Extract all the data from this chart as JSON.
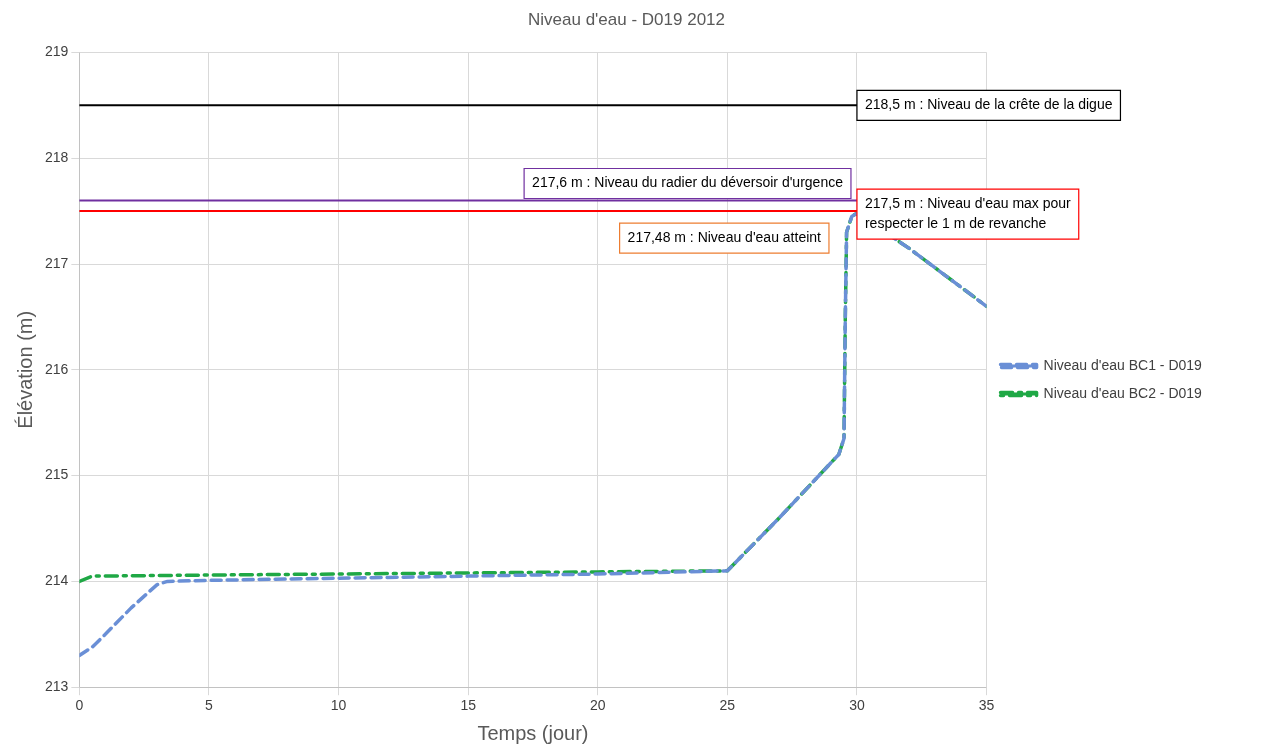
{
  "chart_data": {
    "type": "line",
    "title": "Niveau d'eau - D019 2012",
    "xlabel": "Temps (jour)",
    "ylabel": "Élévation (m)",
    "xlim": [
      0,
      35
    ],
    "xticks": [
      0,
      5,
      10,
      15,
      20,
      25,
      30,
      35
    ],
    "ylim": [
      213,
      219
    ],
    "yticks": [
      213,
      214,
      215,
      216,
      217,
      218,
      219
    ],
    "grid": true,
    "legend": "right",
    "marker": "none",
    "series": [
      {
        "name": "Niveau d'eau BC1 - D019",
        "color": "#6a8fd6",
        "line_style": "dashed",
        "x": [
          0,
          0.5,
          1,
          2,
          3,
          3.4,
          5,
          10,
          15,
          20,
          25,
          27,
          29.3,
          29.5,
          29.55,
          29.6,
          29.8,
          30,
          32,
          35
        ],
        "values": [
          213.3,
          213.38,
          213.5,
          213.75,
          213.97,
          214.0,
          214.01,
          214.03,
          214.05,
          214.07,
          214.1,
          214.6,
          215.2,
          215.35,
          216.5,
          217.3,
          217.45,
          217.48,
          217.15,
          216.6
        ]
      },
      {
        "name": "Niveau d'eau BC2 - D019",
        "color": "#1fa845",
        "line_style": "dashed",
        "x": [
          0,
          0.5,
          5,
          10,
          15,
          20,
          25,
          27,
          29.3,
          29.5,
          29.55,
          29.6,
          29.8,
          30,
          32,
          35
        ],
        "values": [
          214.0,
          214.05,
          214.06,
          214.07,
          214.08,
          214.09,
          214.1,
          214.6,
          215.2,
          215.35,
          216.5,
          217.3,
          217.45,
          217.48,
          217.15,
          216.6
        ]
      }
    ],
    "ref_lines": [
      {
        "axis": "y",
        "value": 218.5,
        "label": "218,5 m : Niveau de la crête de la digue",
        "color": "#000000"
      },
      {
        "axis": "y",
        "value": 217.6,
        "label": "217,6 m : Niveau du radier du déversoir d'urgence",
        "color": "#7030a0"
      },
      {
        "axis": "y",
        "value": 217.5,
        "label": "217,5 m : Niveau d'eau max pour\nrespecter le 1 m de revanche",
        "color": "#ff0000"
      }
    ],
    "annotations": [
      {
        "text": "217,48 m : Niveau d'eau atteint",
        "x": 30,
        "y": 217.48
      }
    ]
  }
}
